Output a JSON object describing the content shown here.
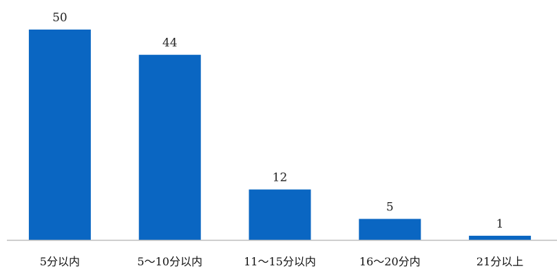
{
  "chart_data": {
    "type": "bar",
    "title": "",
    "xlabel": "",
    "ylabel": "",
    "categories": [
      "5分以内",
      "5～10分以内",
      "11～15分以内",
      "16～20分内",
      "21分以上"
    ],
    "values": [
      50,
      44,
      12,
      5,
      1
    ],
    "ylim": [
      0,
      50
    ],
    "grid": false,
    "legend": "none",
    "bar_color": "#0A66C2",
    "axis_color": "#BDBDBD"
  }
}
